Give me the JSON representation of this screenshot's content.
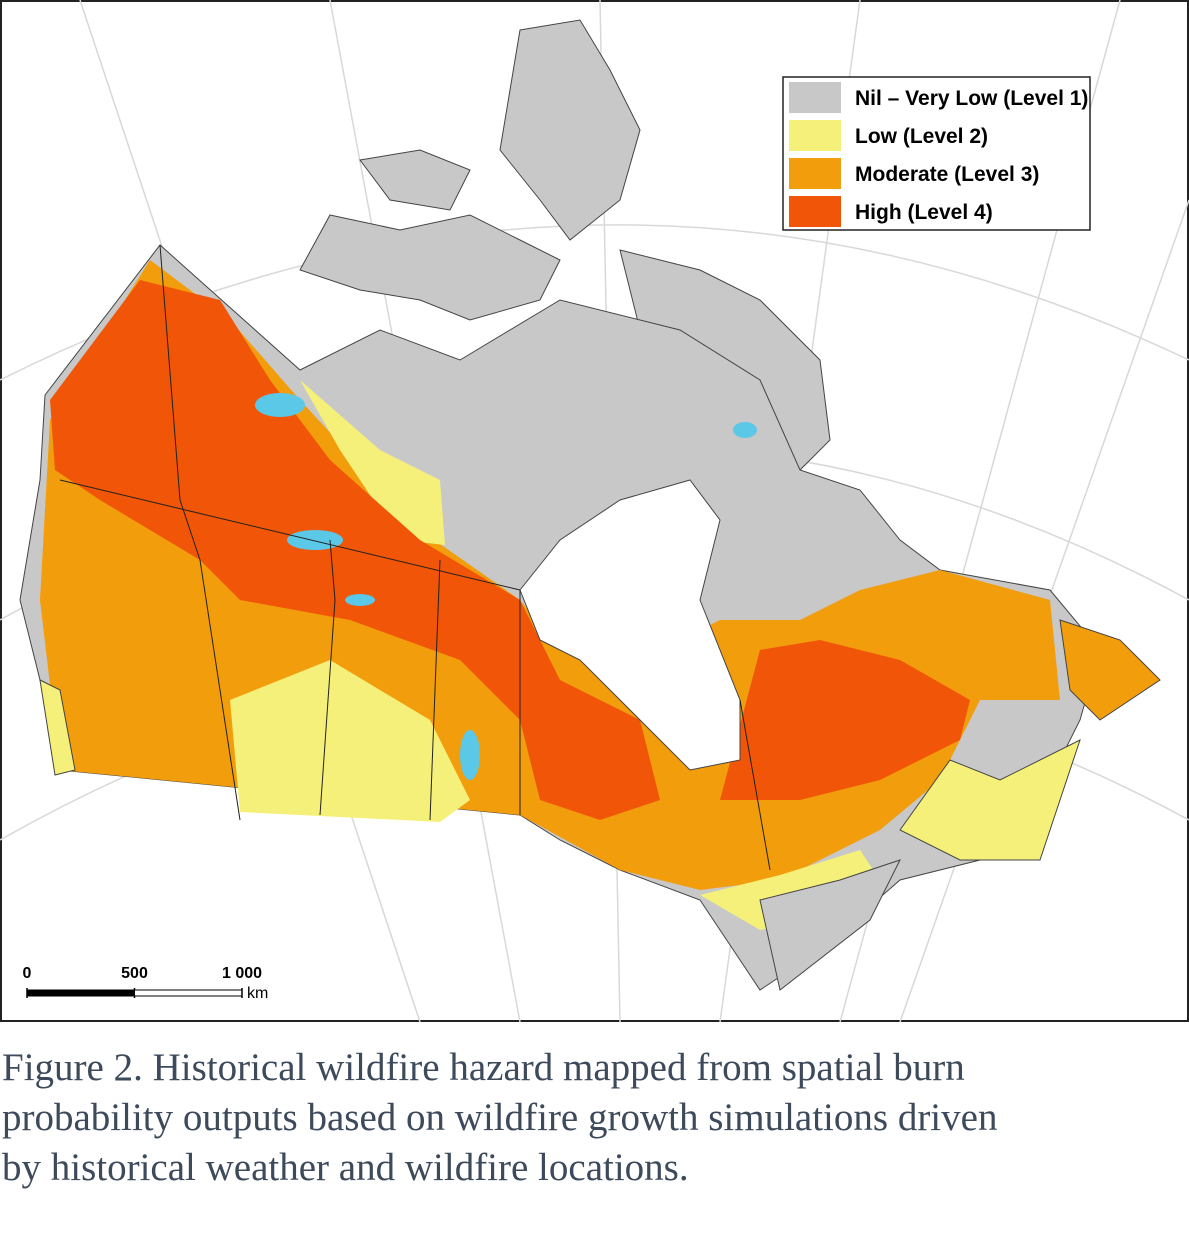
{
  "legend": {
    "items": [
      {
        "label": "Nil – Very Low (Level 1)",
        "color": "#c8c8c8"
      },
      {
        "label": "Low (Level 2)",
        "color": "#f5f07a"
      },
      {
        "label": "Moderate (Level 3)",
        "color": "#f29d0c"
      },
      {
        "label": "High (Level 4)",
        "color": "#f05508"
      }
    ]
  },
  "scale_bar": {
    "ticks": [
      0,
      500,
      {
        "value": 1000,
        "label": "1 000"
      }
    ],
    "unit": "km"
  },
  "caption": {
    "lines": [
      "Figure 2. Historical wildfire hazard mapped from spatial burn",
      "probability outputs based on wildfire growth simulations driven",
      "by historical weather and wildfire locations."
    ]
  }
}
